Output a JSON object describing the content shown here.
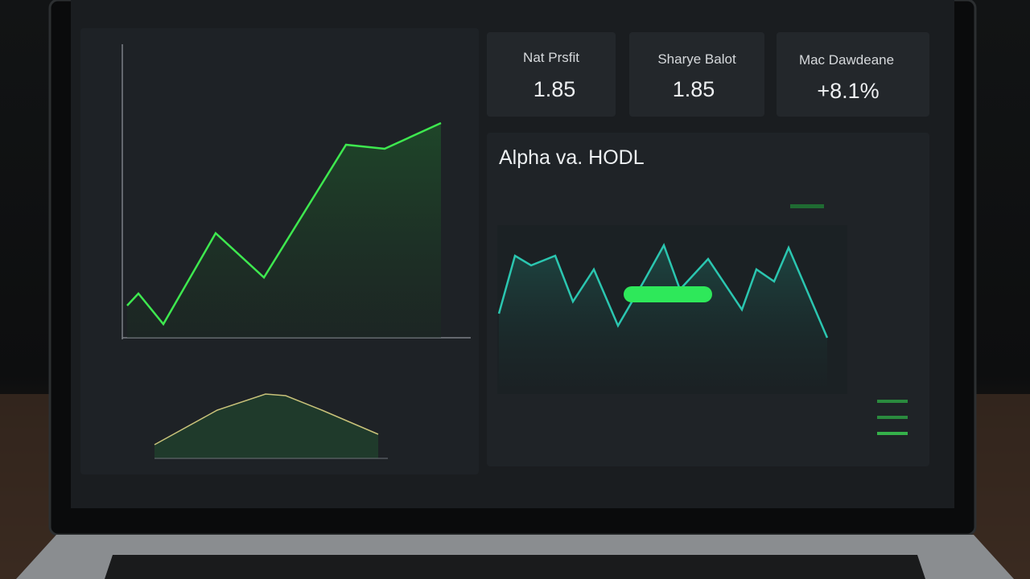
{
  "kpis": [
    {
      "label": "Nat Prsfit",
      "value": "1.85"
    },
    {
      "label": "Sharye Balot",
      "value": "1.85"
    },
    {
      "label": "Mac Dawdeane",
      "value": "+8.1%"
    }
  ],
  "alpha_panel": {
    "title": "Alpha va. HODL"
  }
}
